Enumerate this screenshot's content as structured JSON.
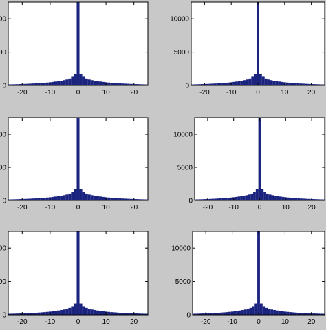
{
  "figure": {
    "background": "#c8c8c8",
    "bar_color": "#1a237e",
    "axes_background": "#ffffff"
  },
  "chart_data": [
    {
      "type": "bar",
      "panel": "top-left",
      "xlim": [
        -25,
        25
      ],
      "ylim": [
        0,
        12500
      ],
      "xticks": [
        -20,
        -10,
        0,
        10,
        20
      ],
      "xtick_labels": [
        "-20",
        "-10",
        "0",
        "10",
        "20"
      ],
      "yticks": [
        0,
        5000,
        10000
      ],
      "ytick_labels": [
        "0",
        "00",
        "00"
      ],
      "x": [
        -25,
        -24,
        -23,
        -22,
        -21,
        -20,
        -19,
        -18,
        -17,
        -16,
        -15,
        -14,
        -13,
        -12,
        -11,
        -10,
        -9,
        -8,
        -7,
        -6,
        -5,
        -4,
        -3,
        -2,
        -1,
        0,
        1,
        2,
        3,
        4,
        5,
        6,
        7,
        8,
        9,
        10,
        11,
        12,
        13,
        14,
        15,
        16,
        17,
        18,
        19,
        20,
        21,
        22,
        23,
        24,
        25
      ],
      "values": [
        150,
        160,
        170,
        185,
        200,
        215,
        230,
        250,
        270,
        290,
        310,
        340,
        370,
        400,
        440,
        480,
        530,
        590,
        650,
        720,
        800,
        900,
        1050,
        1300,
        1700,
        12500,
        1700,
        1300,
        1050,
        900,
        800,
        720,
        650,
        590,
        530,
        480,
        440,
        400,
        370,
        340,
        310,
        290,
        270,
        250,
        230,
        215,
        200,
        185,
        170,
        160,
        150
      ]
    },
    {
      "type": "bar",
      "panel": "top-right",
      "xlim": [
        -25,
        25
      ],
      "ylim": [
        0,
        12500
      ],
      "xticks": [
        -20,
        -10,
        0,
        10,
        20
      ],
      "xtick_labels": [
        "-20",
        "-10",
        "0",
        "10",
        "20"
      ],
      "yticks": [
        0,
        5000,
        10000
      ],
      "ytick_labels": [
        "0",
        "5000",
        "10000"
      ],
      "x": [
        -25,
        -24,
        -23,
        -22,
        -21,
        -20,
        -19,
        -18,
        -17,
        -16,
        -15,
        -14,
        -13,
        -12,
        -11,
        -10,
        -9,
        -8,
        -7,
        -6,
        -5,
        -4,
        -3,
        -2,
        -1,
        0,
        1,
        2,
        3,
        4,
        5,
        6,
        7,
        8,
        9,
        10,
        11,
        12,
        13,
        14,
        15,
        16,
        17,
        18,
        19,
        20,
        21,
        22,
        23,
        24,
        25
      ],
      "values": [
        150,
        160,
        170,
        185,
        200,
        215,
        230,
        250,
        270,
        290,
        310,
        340,
        370,
        400,
        440,
        480,
        530,
        590,
        650,
        720,
        800,
        900,
        1050,
        1300,
        1700,
        12500,
        1700,
        1300,
        1050,
        900,
        800,
        720,
        650,
        590,
        530,
        480,
        440,
        400,
        370,
        340,
        310,
        290,
        270,
        250,
        230,
        215,
        200,
        185,
        170,
        160,
        150
      ]
    },
    {
      "type": "bar",
      "panel": "middle-left",
      "xlim": [
        -25,
        25
      ],
      "ylim": [
        0,
        12500
      ],
      "xticks": [
        -20,
        -10,
        0,
        10,
        20
      ],
      "xtick_labels": [
        "-20",
        "-10",
        "0",
        "10",
        "20"
      ],
      "yticks": [
        0,
        5000,
        10000
      ],
      "ytick_labels": [
        "0",
        "00",
        "00"
      ],
      "x": [
        -25,
        -24,
        -23,
        -22,
        -21,
        -20,
        -19,
        -18,
        -17,
        -16,
        -15,
        -14,
        -13,
        -12,
        -11,
        -10,
        -9,
        -8,
        -7,
        -6,
        -5,
        -4,
        -3,
        -2,
        -1,
        0,
        1,
        2,
        3,
        4,
        5,
        6,
        7,
        8,
        9,
        10,
        11,
        12,
        13,
        14,
        15,
        16,
        17,
        18,
        19,
        20,
        21,
        22,
        23,
        24,
        25
      ],
      "values": [
        150,
        160,
        170,
        185,
        200,
        215,
        230,
        250,
        270,
        290,
        310,
        340,
        370,
        400,
        440,
        480,
        530,
        590,
        650,
        720,
        800,
        900,
        1050,
        1300,
        1700,
        12500,
        1700,
        1300,
        1050,
        900,
        800,
        720,
        650,
        590,
        530,
        480,
        440,
        400,
        370,
        340,
        310,
        290,
        270,
        250,
        230,
        215,
        200,
        185,
        170,
        160,
        150
      ]
    },
    {
      "type": "bar",
      "panel": "middle-right",
      "xlim": [
        -25,
        25
      ],
      "ylim": [
        0,
        12500
      ],
      "xticks": [
        -20,
        -10,
        0,
        10,
        20
      ],
      "xtick_labels": [
        "-20",
        "-10",
        "0",
        "10",
        "20"
      ],
      "yticks": [
        0,
        5000,
        10000
      ],
      "ytick_labels": [
        "0",
        "5000",
        "10000"
      ],
      "x": [
        -25,
        -24,
        -23,
        -22,
        -21,
        -20,
        -19,
        -18,
        -17,
        -16,
        -15,
        -14,
        -13,
        -12,
        -11,
        -10,
        -9,
        -8,
        -7,
        -6,
        -5,
        -4,
        -3,
        -2,
        -1,
        0,
        1,
        2,
        3,
        4,
        5,
        6,
        7,
        8,
        9,
        10,
        11,
        12,
        13,
        14,
        15,
        16,
        17,
        18,
        19,
        20,
        21,
        22,
        23,
        24,
        25
      ],
      "values": [
        150,
        160,
        170,
        185,
        200,
        215,
        230,
        250,
        270,
        290,
        310,
        340,
        370,
        400,
        440,
        480,
        530,
        590,
        650,
        720,
        800,
        900,
        1050,
        1300,
        1700,
        12500,
        1700,
        1300,
        1050,
        900,
        800,
        720,
        650,
        590,
        530,
        480,
        440,
        400,
        370,
        340,
        310,
        290,
        270,
        250,
        230,
        215,
        200,
        185,
        170,
        160,
        150
      ]
    },
    {
      "type": "bar",
      "panel": "bottom-left",
      "xlim": [
        -25,
        25
      ],
      "ylim": [
        0,
        12500
      ],
      "xticks": [
        -20,
        -10,
        0,
        10,
        20
      ],
      "xtick_labels": [
        "-20",
        "-10",
        "0",
        "10",
        "20"
      ],
      "yticks": [
        0,
        5000,
        10000
      ],
      "ytick_labels": [
        "0",
        "00",
        "00"
      ],
      "x": [
        -25,
        -24,
        -23,
        -22,
        -21,
        -20,
        -19,
        -18,
        -17,
        -16,
        -15,
        -14,
        -13,
        -12,
        -11,
        -10,
        -9,
        -8,
        -7,
        -6,
        -5,
        -4,
        -3,
        -2,
        -1,
        0,
        1,
        2,
        3,
        4,
        5,
        6,
        7,
        8,
        9,
        10,
        11,
        12,
        13,
        14,
        15,
        16,
        17,
        18,
        19,
        20,
        21,
        22,
        23,
        24,
        25
      ],
      "values": [
        150,
        160,
        170,
        185,
        200,
        215,
        230,
        250,
        270,
        290,
        310,
        340,
        370,
        400,
        440,
        480,
        530,
        590,
        650,
        720,
        800,
        900,
        1050,
        1300,
        1700,
        12500,
        1700,
        1300,
        1050,
        900,
        800,
        720,
        650,
        590,
        530,
        480,
        440,
        400,
        370,
        340,
        310,
        290,
        270,
        250,
        230,
        215,
        200,
        185,
        170,
        160,
        150
      ]
    },
    {
      "type": "bar",
      "panel": "bottom-right",
      "xlim": [
        -25,
        25
      ],
      "ylim": [
        0,
        12500
      ],
      "xticks": [
        -20,
        -10,
        0,
        10,
        20
      ],
      "xtick_labels": [
        "-20",
        "-10",
        "0",
        "10",
        "20"
      ],
      "yticks": [
        0,
        5000,
        10000
      ],
      "ytick_labels": [
        "0",
        "5000",
        "10000"
      ],
      "x": [
        -25,
        -24,
        -23,
        -22,
        -21,
        -20,
        -19,
        -18,
        -17,
        -16,
        -15,
        -14,
        -13,
        -12,
        -11,
        -10,
        -9,
        -8,
        -7,
        -6,
        -5,
        -4,
        -3,
        -2,
        -1,
        0,
        1,
        2,
        3,
        4,
        5,
        6,
        7,
        8,
        9,
        10,
        11,
        12,
        13,
        14,
        15,
        16,
        17,
        18,
        19,
        20,
        21,
        22,
        23,
        24,
        25
      ],
      "values": [
        150,
        160,
        170,
        185,
        200,
        215,
        230,
        250,
        270,
        290,
        310,
        340,
        370,
        400,
        440,
        480,
        530,
        590,
        650,
        720,
        800,
        900,
        1050,
        1300,
        1700,
        12500,
        1700,
        1300,
        1050,
        900,
        800,
        720,
        650,
        590,
        530,
        480,
        440,
        400,
        370,
        340,
        310,
        290,
        270,
        250,
        230,
        215,
        200,
        185,
        170,
        160,
        150
      ]
    }
  ]
}
